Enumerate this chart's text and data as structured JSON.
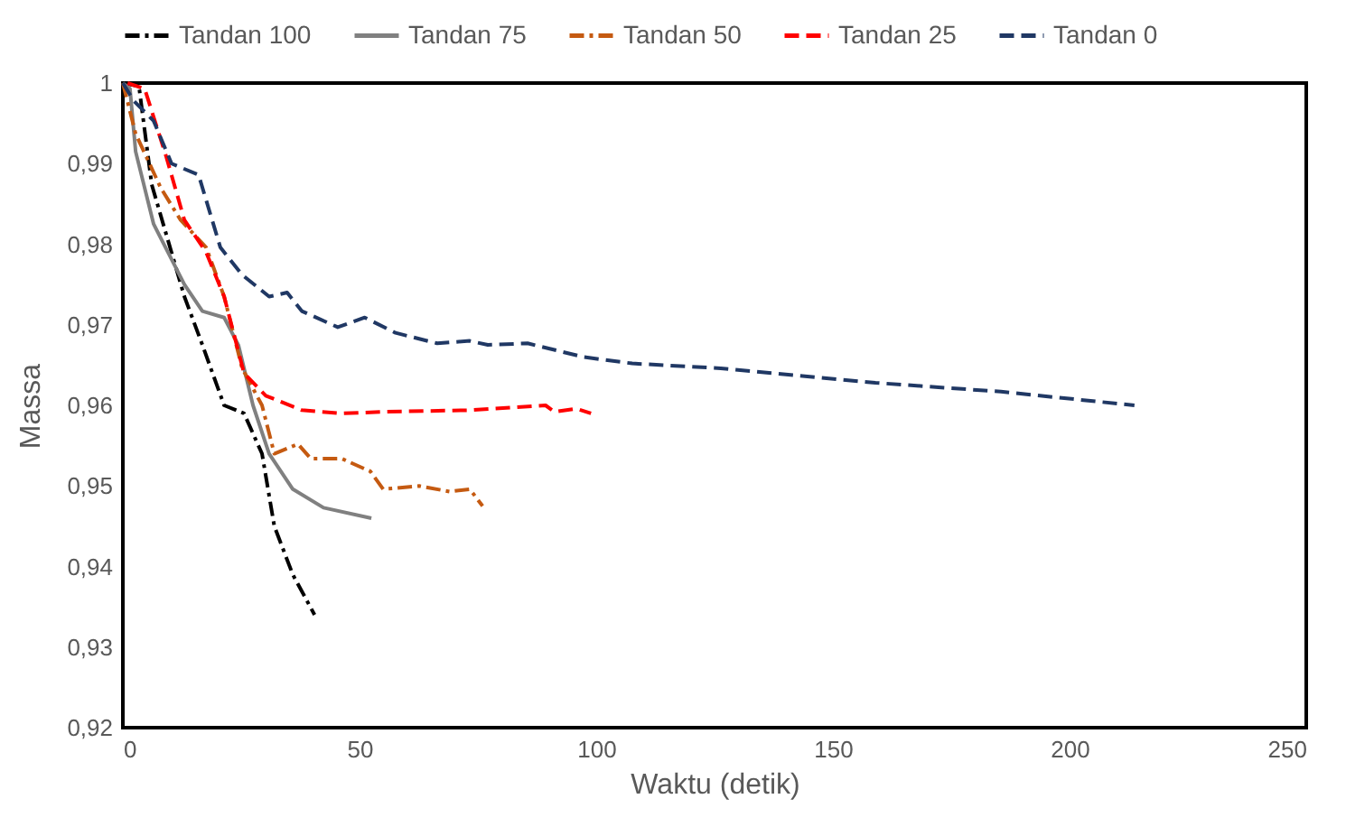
{
  "chart_data": {
    "type": "line",
    "xlabel": "Waktu (detik)",
    "ylabel": "Massa",
    "xlim": [
      0,
      250
    ],
    "xticks": [
      0,
      50,
      100,
      150,
      200,
      250
    ],
    "ylim": [
      0.92,
      1
    ],
    "yticks": [
      {
        "value": 0.92,
        "label": "0,92"
      },
      {
        "value": 0.93,
        "label": "0,93"
      },
      {
        "value": 0.94,
        "label": "0,94"
      },
      {
        "value": 0.95,
        "label": "0,95"
      },
      {
        "value": 0.96,
        "label": "0,96"
      },
      {
        "value": 0.97,
        "label": "0,97"
      },
      {
        "value": 0.98,
        "label": "0,98"
      },
      {
        "value": 0.99,
        "label": "0,99"
      },
      {
        "value": 1,
        "label": "1"
      }
    ],
    "grid": false,
    "legend": "top",
    "marker": "none",
    "series": [
      {
        "name": "Tandan 100",
        "color": "#000000",
        "line_style": "dashdot",
        "x": [
          0,
          3.4,
          6.1,
          13,
          16.8,
          21.4,
          25.6,
          29.4,
          32,
          35.9,
          40.5
        ],
        "values": [
          1,
          0.9996,
          0.9874,
          0.9735,
          0.9675,
          0.96,
          0.959,
          0.954,
          0.945,
          0.939,
          0.934
        ]
      },
      {
        "name": "Tandan 75",
        "color": "#808080",
        "line_style": "solid",
        "x": [
          0,
          1.5,
          2.7,
          6.5,
          13,
          16.8,
          21.4,
          24.4,
          27.5,
          30.9,
          35.9,
          42.4,
          52.5
        ],
        "values": [
          1,
          0.9993,
          0.9915,
          0.9825,
          0.975,
          0.9717,
          0.9709,
          0.9675,
          0.96,
          0.954,
          0.9496,
          0.9473,
          0.946
        ]
      },
      {
        "name": "Tandan 50",
        "color": "#c55a11",
        "line_style": "dashdot",
        "x": [
          0,
          2.7,
          8,
          12.2,
          17.6,
          21.4,
          25.2,
          29.4,
          32,
          37,
          39.7,
          46.2,
          52.3,
          55,
          62.6,
          69,
          73.3,
          76
        ],
        "values": [
          1,
          0.9937,
          0.987,
          0.983,
          0.9796,
          0.9735,
          0.9646,
          0.96,
          0.954,
          0.9552,
          0.9534,
          0.9534,
          0.9518,
          0.9496,
          0.95,
          0.9493,
          0.9496,
          0.9475
        ]
      },
      {
        "name": "Tandan 25",
        "color": "#ff0000",
        "line_style": "dashed",
        "x": [
          1,
          4.6,
          9.2,
          13,
          17.6,
          21.4,
          25.6,
          30.2,
          37.8,
          46.2,
          55,
          72.9,
          89.3,
          91.2,
          95.8,
          98.9
        ],
        "values": [
          1,
          0.9993,
          0.9908,
          0.983,
          0.979,
          0.9735,
          0.964,
          0.9612,
          0.9594,
          0.959,
          0.9592,
          0.9594,
          0.96,
          0.9592,
          0.9596,
          0.959
        ]
      },
      {
        "name": "Tandan 0",
        "color": "#203864",
        "line_style": "dashed",
        "x": [
          0,
          2.3,
          6.5,
          10.3,
          16,
          20.6,
          25.2,
          30.9,
          34.7,
          37.8,
          45.4,
          51.1,
          57.6,
          66.4,
          73.3,
          77.1,
          85.5,
          97.3,
          107.6,
          126.3,
          159,
          185.5,
          213.7
        ],
        "values": [
          1,
          0.9978,
          0.9953,
          0.99,
          0.9886,
          0.9796,
          0.9762,
          0.9735,
          0.974,
          0.9717,
          0.9697,
          0.9709,
          0.969,
          0.9677,
          0.968,
          0.9675,
          0.9677,
          0.966,
          0.9652,
          0.9646,
          0.9628,
          0.9617,
          0.96
        ]
      }
    ]
  }
}
